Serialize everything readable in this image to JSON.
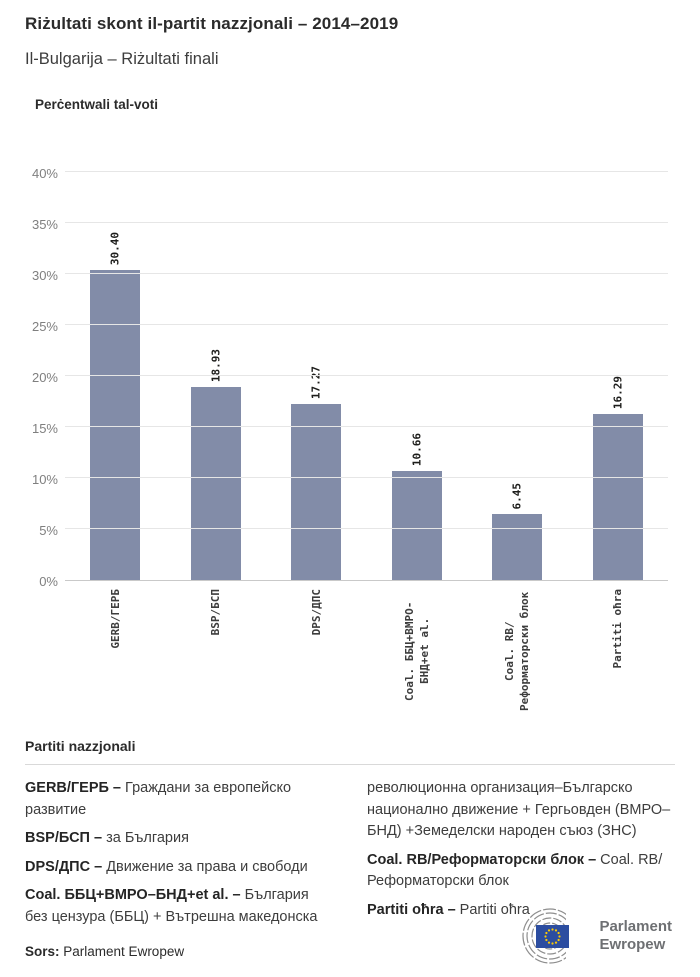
{
  "header": {
    "title": "Riżultati skont il-partit nazzjonali – 2014–2019",
    "subtitle": "Il-Bulgarija – Riżultati finali"
  },
  "chart_data": {
    "type": "bar",
    "title": "Perċentwali tal-voti",
    "xlabel": "",
    "ylabel": "Perċentwali tal-voti",
    "categories": [
      "GERB/ГЕРБ",
      "BSP/БСП",
      "DPS/ДПС",
      "Coal. ББЦ+ВМРО-БНД+et al.",
      "Coal. RB/Реформаторски блок",
      "Partiti oħra"
    ],
    "values": [
      30.4,
      18.93,
      17.27,
      10.66,
      6.45,
      16.29
    ],
    "value_labels": [
      "30.40",
      "18.93",
      "17.27",
      "10.66",
      "6.45",
      "16.29"
    ],
    "ylim": [
      0,
      40
    ],
    "ytick_step": 5,
    "ytick_suffix": "%",
    "grid": true,
    "legend_position": "none",
    "bar_color": "#828CA8",
    "grid_color": "#E6E6E6",
    "axis_line_color": "#C9C9C9",
    "tick_label_color": "#7F7F7F"
  },
  "party_legend": {
    "heading": "Partiti nazzjonali",
    "entries": [
      {
        "term": "GERB/ГЕРБ –",
        "desc": "Граждани за европейско развитие"
      },
      {
        "term": "BSP/БСП –",
        "desc": "за България"
      },
      {
        "term": "DPS/ДПС –",
        "desc": "Движение за права и свободи"
      },
      {
        "term": "Coal. ББЦ+ВМРО–БНД+et al. –",
        "desc": "България без цензура (ББЦ) + Вътрешна македонска революционна организация–Българско национално движение + Гергьовден (ВМРО–БНД) +Земеделски народен съюз (ЗНС)"
      },
      {
        "term": "Coal. RB/Реформаторски блок –",
        "desc": "Coal. RB/Реформаторски блок"
      },
      {
        "term": "Partiti oħra –",
        "desc": "Partiti oħra"
      }
    ]
  },
  "footer": {
    "source_label": "Sors:",
    "source_value": "Parlament Ewropew",
    "logo": {
      "line1": "Parlament",
      "line2": "Ewropew",
      "colors": {
        "arc_gray": "#8E8E8E",
        "flag_blue": "#2C4DA0",
        "star_yellow": "#FFCC00",
        "text_gray": "#6E7073"
      }
    }
  }
}
